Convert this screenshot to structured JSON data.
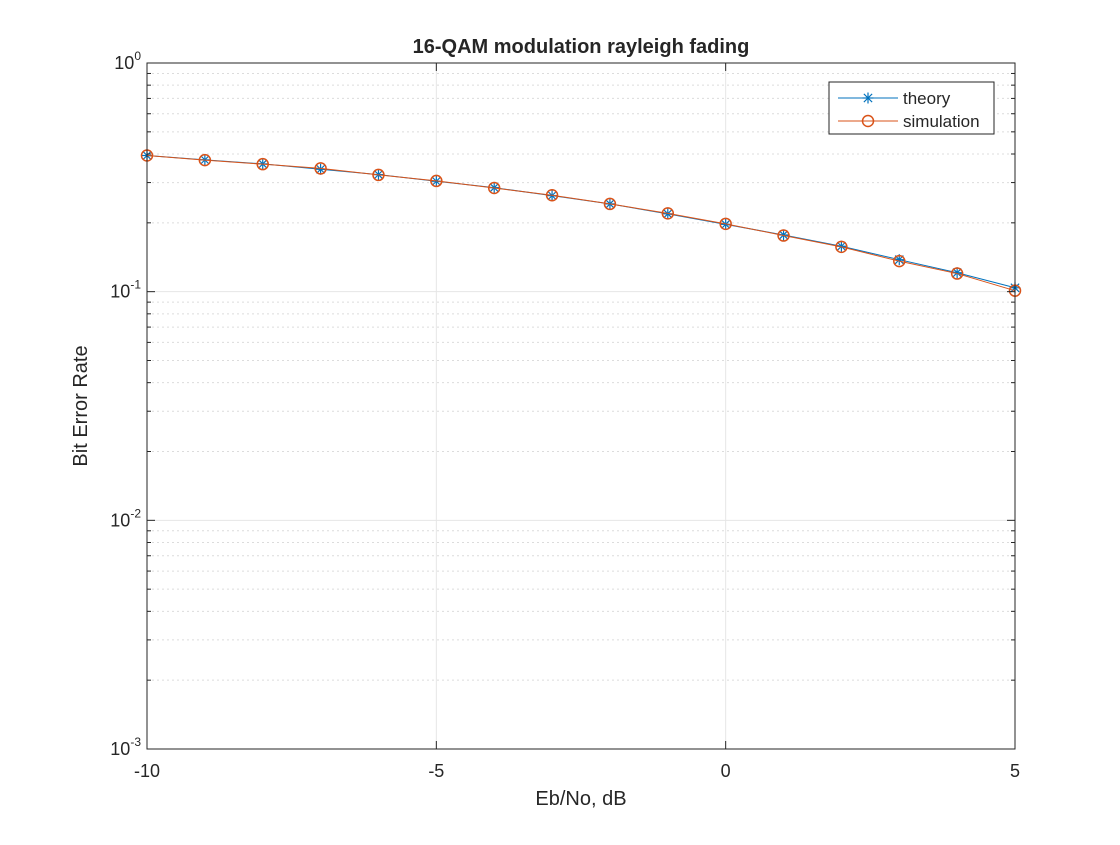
{
  "chart_data": {
    "type": "line",
    "title": "16-QAM modulation rayleigh fading",
    "xlabel": "Eb/No, dB",
    "ylabel": "Bit Error Rate",
    "xlim": [
      -10,
      5
    ],
    "ylim": [
      0.001,
      1
    ],
    "yscale": "log",
    "grid": true,
    "minor_grid": true,
    "legend_position": "top-right",
    "x_ticks": [
      "-10",
      "-5",
      "0",
      "5"
    ],
    "y_ticks": [
      {
        "base": "10",
        "exp": "0"
      },
      {
        "base": "10",
        "exp": "-1"
      },
      {
        "base": "10",
        "exp": "-2"
      },
      {
        "base": "10",
        "exp": "-3"
      }
    ],
    "x": [
      -10,
      -9,
      -8,
      -7,
      -6,
      -5,
      -4,
      -3,
      -2,
      -1,
      0,
      1,
      2,
      3,
      4,
      5
    ],
    "series": [
      {
        "name": "theory",
        "color": "#0072BD",
        "marker": "asterisk",
        "values": [
          0.394,
          0.377,
          0.362,
          0.343,
          0.325,
          0.304,
          0.285,
          0.263,
          0.242,
          0.219,
          0.197,
          0.177,
          0.158,
          0.138,
          0.121,
          0.104
        ]
      },
      {
        "name": "simulation",
        "color": "#D95319",
        "marker": "circle",
        "values": [
          0.394,
          0.376,
          0.361,
          0.346,
          0.324,
          0.305,
          0.284,
          0.264,
          0.242,
          0.22,
          0.198,
          0.176,
          0.157,
          0.136,
          0.12,
          0.101
        ]
      }
    ]
  }
}
